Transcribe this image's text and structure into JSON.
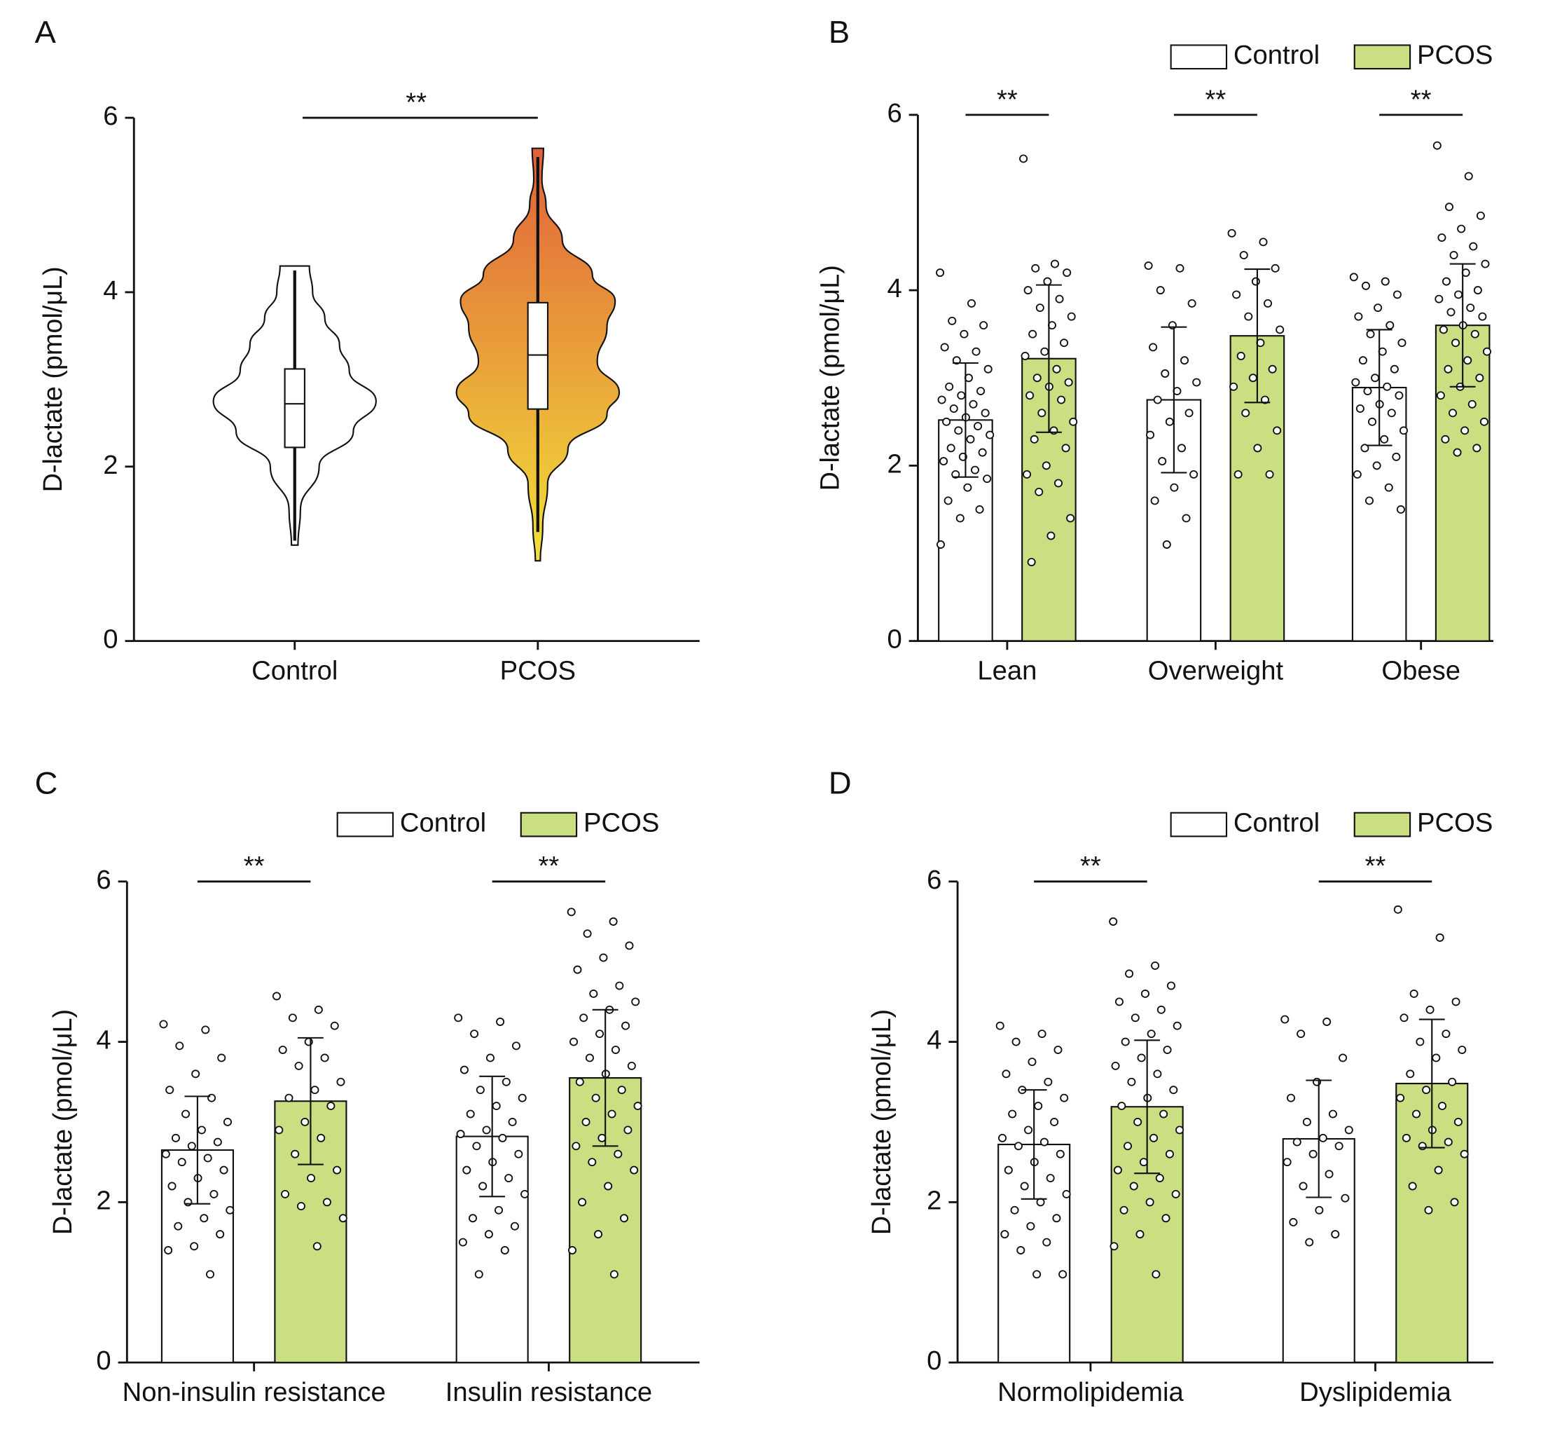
{
  "chart_data": [
    {
      "type": "violin",
      "panel": "A",
      "ylabel": "D-lactate (pmol/μL)",
      "ylim": [
        0,
        6
      ],
      "yticks": [
        0,
        2,
        4,
        6
      ],
      "categories": [
        "Control",
        "PCOS"
      ],
      "significance": "**",
      "series": [
        {
          "name": "Control",
          "color": [
            "#ffffff",
            "#ffffff"
          ],
          "box": {
            "min": 1.15,
            "q1": 2.22,
            "median": 2.72,
            "q3": 3.12,
            "max": 4.25
          },
          "profile": {
            "y": [
              1.1,
              1.5,
              2.0,
              2.4,
              2.75,
              3.1,
              3.4,
              3.7,
              4.0,
              4.3
            ],
            "width": [
              0.04,
              0.07,
              0.3,
              0.72,
              1,
              0.67,
              0.55,
              0.37,
              0.22,
              0.18
            ]
          }
        },
        {
          "name": "PCOS",
          "color": [
            "#e0603a",
            "#f2e03a"
          ],
          "box": {
            "min": 1.25,
            "q1": 2.66,
            "median": 3.28,
            "q3": 3.88,
            "max": 5.55
          },
          "profile": {
            "y": [
              0.92,
              1.3,
              1.8,
              2.2,
              2.6,
              2.85,
              3.2,
              3.6,
              3.9,
              4.2,
              4.6,
              5.0,
              5.3,
              5.65
            ],
            "width": [
              0.03,
              0.06,
              0.12,
              0.37,
              0.85,
              1,
              0.73,
              0.85,
              0.95,
              0.67,
              0.3,
              0.1,
              0.05,
              0.07
            ]
          }
        }
      ]
    },
    {
      "type": "bar",
      "panel": "B",
      "ylabel": "D-lactate (pmol/μL)",
      "ylim": [
        0,
        6
      ],
      "yticks": [
        0,
        2,
        4,
        6
      ],
      "legend": "top-right",
      "categories": [
        "Lean",
        "Overweight",
        "Obese"
      ],
      "significance": [
        "**",
        "**",
        "**"
      ],
      "series": [
        {
          "name": "Control",
          "color": "#ffffff",
          "values": [
            2.52,
            2.75,
            2.89
          ],
          "errors": [
            0.65,
            0.83,
            0.66
          ],
          "points": [
            [
              4.2,
              3.85,
              3.65,
              3.6,
              3.5,
              3.35,
              3.3,
              3.2,
              3.1,
              3.0,
              2.9,
              2.85,
              2.8,
              2.75,
              2.7,
              2.65,
              2.6,
              2.55,
              2.5,
              2.45,
              2.4,
              2.35,
              2.3,
              2.2,
              2.15,
              2.1,
              2.05,
              1.95,
              1.9,
              1.85,
              1.75,
              1.6,
              1.5,
              1.4,
              1.1
            ],
            [
              4.28,
              4.25,
              4.0,
              3.85,
              3.6,
              3.35,
              3.2,
              3.05,
              2.95,
              2.85,
              2.75,
              2.6,
              2.5,
              2.35,
              2.2,
              2.05,
              1.9,
              1.75,
              1.6,
              1.4,
              1.1
            ],
            [
              4.15,
              4.1,
              4.05,
              3.95,
              3.8,
              3.7,
              3.6,
              3.5,
              3.4,
              3.3,
              3.2,
              3.1,
              3.0,
              2.95,
              2.9,
              2.85,
              2.8,
              2.7,
              2.65,
              2.6,
              2.5,
              2.4,
              2.3,
              2.2,
              2.1,
              2.0,
              1.9,
              1.75,
              1.6,
              1.5
            ]
          ]
        },
        {
          "name": "PCOS",
          "color": "#c9df82",
          "values": [
            3.22,
            3.48,
            3.6
          ],
          "errors": [
            0.84,
            0.76,
            0.7
          ],
          "points": [
            [
              5.5,
              4.3,
              4.25,
              4.2,
              4.1,
              4.0,
              3.9,
              3.8,
              3.7,
              3.6,
              3.5,
              3.4,
              3.3,
              3.25,
              3.1,
              3.0,
              2.95,
              2.9,
              2.8,
              2.75,
              2.6,
              2.5,
              2.4,
              2.3,
              2.2,
              2.0,
              1.9,
              1.8,
              1.7,
              1.4,
              1.2,
              0.9
            ],
            [
              4.65,
              4.55,
              4.4,
              4.25,
              4.1,
              3.95,
              3.85,
              3.7,
              3.55,
              3.4,
              3.25,
              3.1,
              3.0,
              2.9,
              2.75,
              2.6,
              2.4,
              2.2,
              1.9,
              1.9
            ],
            [
              5.65,
              5.3,
              4.95,
              4.85,
              4.7,
              4.6,
              4.5,
              4.4,
              4.3,
              4.2,
              4.1,
              4.0,
              3.95,
              3.9,
              3.8,
              3.75,
              3.7,
              3.6,
              3.55,
              3.5,
              3.4,
              3.3,
              3.2,
              3.1,
              3.0,
              2.9,
              2.8,
              2.7,
              2.6,
              2.5,
              2.4,
              2.3,
              2.2,
              2.15
            ]
          ]
        }
      ]
    },
    {
      "type": "bar",
      "panel": "C",
      "ylabel": "D-lactate (pmol/μL)",
      "ylim": [
        0,
        6
      ],
      "yticks": [
        0,
        2,
        4,
        6
      ],
      "legend": "top-right",
      "categories": [
        "Non-insulin resistance",
        "Insulin resistance"
      ],
      "significance": [
        "**",
        "**"
      ],
      "series": [
        {
          "name": "Control",
          "color": "#ffffff",
          "values": [
            2.65,
            2.82
          ],
          "errors": [
            0.67,
            0.75
          ],
          "points": [
            [
              4.22,
              4.15,
              3.95,
              3.8,
              3.6,
              3.4,
              3.3,
              3.1,
              3.0,
              2.9,
              2.8,
              2.75,
              2.7,
              2.6,
              2.55,
              2.5,
              2.4,
              2.3,
              2.2,
              2.1,
              2.0,
              1.9,
              1.8,
              1.7,
              1.6,
              1.45,
              1.4,
              1.1
            ],
            [
              4.3,
              4.25,
              4.1,
              3.95,
              3.8,
              3.65,
              3.5,
              3.4,
              3.3,
              3.2,
              3.1,
              3.0,
              2.9,
              2.85,
              2.8,
              2.7,
              2.6,
              2.5,
              2.4,
              2.3,
              2.2,
              2.1,
              1.9,
              1.8,
              1.7,
              1.6,
              1.5,
              1.4,
              1.1
            ]
          ]
        },
        {
          "name": "PCOS",
          "color": "#c9df82",
          "values": [
            3.26,
            3.55
          ],
          "errors": [
            0.79,
            0.85
          ],
          "points": [
            [
              4.57,
              4.4,
              4.3,
              4.2,
              4.0,
              3.9,
              3.8,
              3.7,
              3.5,
              3.4,
              3.3,
              3.2,
              3.0,
              2.9,
              2.8,
              2.6,
              2.4,
              2.3,
              2.1,
              2.0,
              1.95,
              1.8,
              1.45
            ],
            [
              5.62,
              5.5,
              5.35,
              5.2,
              5.05,
              4.9,
              4.7,
              4.6,
              4.5,
              4.4,
              4.3,
              4.2,
              4.1,
              4.0,
              3.9,
              3.8,
              3.7,
              3.6,
              3.5,
              3.4,
              3.3,
              3.2,
              3.1,
              3.0,
              2.9,
              2.8,
              2.7,
              2.6,
              2.5,
              2.4,
              2.2,
              2.0,
              1.8,
              1.6,
              1.4,
              1.1
            ]
          ]
        }
      ]
    },
    {
      "type": "bar",
      "panel": "D",
      "ylabel": "D-lactate (pmol/μL)",
      "ylim": [
        0,
        6
      ],
      "yticks": [
        0,
        2,
        4,
        6
      ],
      "legend": "top-right",
      "categories": [
        "Normolipidemia",
        "Dyslipidemia"
      ],
      "significance": [
        "**",
        "**"
      ],
      "series": [
        {
          "name": "Control",
          "color": "#ffffff",
          "values": [
            2.72,
            2.79
          ],
          "errors": [
            0.68,
            0.73
          ],
          "points": [
            [
              4.2,
              4.1,
              4.0,
              3.9,
              3.75,
              3.6,
              3.5,
              3.4,
              3.3,
              3.2,
              3.1,
              3.0,
              2.9,
              2.8,
              2.75,
              2.7,
              2.6,
              2.5,
              2.4,
              2.3,
              2.2,
              2.1,
              2.0,
              1.9,
              1.8,
              1.7,
              1.6,
              1.5,
              1.4,
              1.1,
              1.1
            ],
            [
              4.28,
              4.25,
              4.1,
              3.8,
              3.5,
              3.3,
              3.1,
              3.0,
              2.9,
              2.8,
              2.75,
              2.7,
              2.6,
              2.5,
              2.35,
              2.2,
              2.05,
              1.9,
              1.75,
              1.6,
              1.5
            ]
          ]
        },
        {
          "name": "PCOS",
          "color": "#c9df82",
          "values": [
            3.19,
            3.48
          ],
          "errors": [
            0.83,
            0.8
          ],
          "points": [
            [
              5.5,
              4.95,
              4.85,
              4.7,
              4.6,
              4.5,
              4.4,
              4.3,
              4.2,
              4.1,
              4.0,
              3.9,
              3.8,
              3.7,
              3.6,
              3.5,
              3.4,
              3.3,
              3.2,
              3.1,
              3.0,
              2.9,
              2.8,
              2.7,
              2.6,
              2.5,
              2.4,
              2.3,
              2.2,
              2.1,
              2.0,
              1.9,
              1.8,
              1.6,
              1.45,
              1.1
            ],
            [
              5.65,
              5.3,
              4.6,
              4.5,
              4.4,
              4.3,
              4.1,
              4.0,
              3.9,
              3.8,
              3.6,
              3.5,
              3.4,
              3.3,
              3.2,
              3.1,
              3.0,
              2.9,
              2.8,
              2.75,
              2.7,
              2.6,
              2.4,
              2.2,
              2.0,
              1.9
            ]
          ]
        }
      ]
    }
  ]
}
